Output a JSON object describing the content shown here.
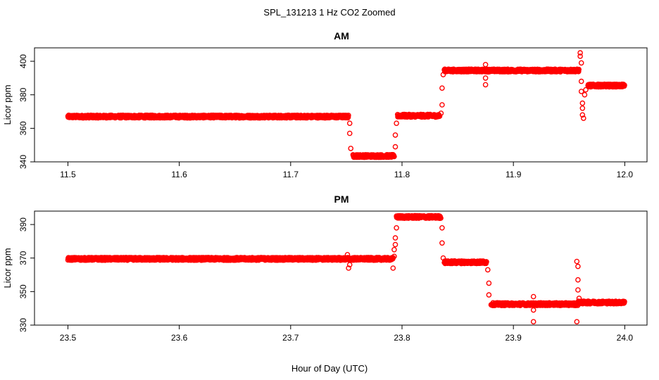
{
  "figure": {
    "title": "SPL_131213  1 Hz CO2 Zoomed",
    "xlabel": "Hour of Day (UTC)",
    "point_color": "#ff0000"
  },
  "chart_data": [
    {
      "type": "scatter",
      "title": "AM",
      "xlabel": "",
      "ylabel": "Licor ppm",
      "xlim": [
        11.47,
        12.02
      ],
      "ylim": [
        340,
        408
      ],
      "xticks": [
        11.5,
        11.6,
        11.7,
        11.8,
        11.9,
        12.0
      ],
      "xtick_labels": [
        "11.5",
        "11.6",
        "11.7",
        "11.8",
        "11.9",
        "12.0"
      ],
      "yticks": [
        340,
        360,
        380,
        400
      ],
      "ytick_labels": [
        "340",
        "360",
        "380",
        "400"
      ],
      "grid": false,
      "series": [
        {
          "color": "#ff0000",
          "marker": "open-circle",
          "segments": [
            {
              "x_start": 11.5,
              "x_end": 11.752,
              "level": 367,
              "noise": 0.8
            },
            {
              "x_start": 11.756,
              "x_end": 11.793,
              "level": 343.5,
              "noise": 0.8
            },
            {
              "x_start": 11.796,
              "x_end": 11.834,
              "level": 367.5,
              "noise": 0.8
            },
            {
              "x_start": 11.838,
              "x_end": 11.959,
              "level": 394.5,
              "noise": 0.8
            },
            {
              "x_start": 11.967,
              "x_end": 12.0,
              "level": 385.5,
              "noise": 0.8
            }
          ],
          "transitions": [
            {
              "x": 11.753,
              "y": 363
            },
            {
              "x": 11.753,
              "y": 357
            },
            {
              "x": 11.754,
              "y": 348
            },
            {
              "x": 11.794,
              "y": 349
            },
            {
              "x": 11.794,
              "y": 356
            },
            {
              "x": 11.795,
              "y": 363
            },
            {
              "x": 11.835,
              "y": 369
            },
            {
              "x": 11.836,
              "y": 374
            },
            {
              "x": 11.836,
              "y": 384
            },
            {
              "x": 11.837,
              "y": 392
            },
            {
              "x": 11.875,
              "y": 398
            },
            {
              "x": 11.875,
              "y": 390
            },
            {
              "x": 11.875,
              "y": 386
            },
            {
              "x": 11.96,
              "y": 405
            },
            {
              "x": 11.96,
              "y": 403
            },
            {
              "x": 11.961,
              "y": 399
            },
            {
              "x": 11.961,
              "y": 388
            },
            {
              "x": 11.961,
              "y": 382
            },
            {
              "x": 11.962,
              "y": 375
            },
            {
              "x": 11.962,
              "y": 372
            },
            {
              "x": 11.962,
              "y": 368
            },
            {
              "x": 11.963,
              "y": 366
            },
            {
              "x": 11.964,
              "y": 380
            },
            {
              "x": 11.965,
              "y": 383
            }
          ]
        }
      ]
    },
    {
      "type": "scatter",
      "title": "PM",
      "xlabel": "Hour of Day (UTC)",
      "ylabel": "Licor ppm",
      "xlim": [
        23.47,
        24.02
      ],
      "ylim": [
        330,
        398
      ],
      "xticks": [
        23.5,
        23.6,
        23.7,
        23.8,
        23.9,
        24.0
      ],
      "xtick_labels": [
        "23.5",
        "23.6",
        "23.7",
        "23.8",
        "23.9",
        "24.0"
      ],
      "yticks": [
        330,
        350,
        370,
        390
      ],
      "ytick_labels": [
        "330",
        "350",
        "370",
        "390"
      ],
      "grid": false,
      "series": [
        {
          "color": "#ff0000",
          "marker": "open-circle",
          "segments": [
            {
              "x_start": 23.5,
              "x_end": 23.792,
              "level": 369.5,
              "noise": 0.8
            },
            {
              "x_start": 23.795,
              "x_end": 23.835,
              "level": 394.5,
              "noise": 0.8
            },
            {
              "x_start": 23.838,
              "x_end": 23.876,
              "level": 367.5,
              "noise": 0.8
            },
            {
              "x_start": 23.88,
              "x_end": 23.958,
              "level": 342.5,
              "noise": 0.8
            },
            {
              "x_start": 23.958,
              "x_end": 24.0,
              "level": 343.5,
              "noise": 0.8
            }
          ],
          "transitions": [
            {
              "x": 23.751,
              "y": 372
            },
            {
              "x": 23.752,
              "y": 364
            },
            {
              "x": 23.753,
              "y": 366
            },
            {
              "x": 23.792,
              "y": 364
            },
            {
              "x": 23.793,
              "y": 371
            },
            {
              "x": 23.793,
              "y": 375
            },
            {
              "x": 23.794,
              "y": 378
            },
            {
              "x": 23.794,
              "y": 382
            },
            {
              "x": 23.795,
              "y": 388
            },
            {
              "x": 23.836,
              "y": 388
            },
            {
              "x": 23.836,
              "y": 379
            },
            {
              "x": 23.837,
              "y": 370
            },
            {
              "x": 23.877,
              "y": 363
            },
            {
              "x": 23.878,
              "y": 355
            },
            {
              "x": 23.878,
              "y": 348
            },
            {
              "x": 23.918,
              "y": 347
            },
            {
              "x": 23.918,
              "y": 339
            },
            {
              "x": 23.918,
              "y": 332
            },
            {
              "x": 23.957,
              "y": 332
            },
            {
              "x": 23.957,
              "y": 368
            },
            {
              "x": 23.958,
              "y": 365
            },
            {
              "x": 23.958,
              "y": 357
            },
            {
              "x": 23.958,
              "y": 351
            },
            {
              "x": 23.959,
              "y": 346
            }
          ]
        }
      ]
    }
  ]
}
